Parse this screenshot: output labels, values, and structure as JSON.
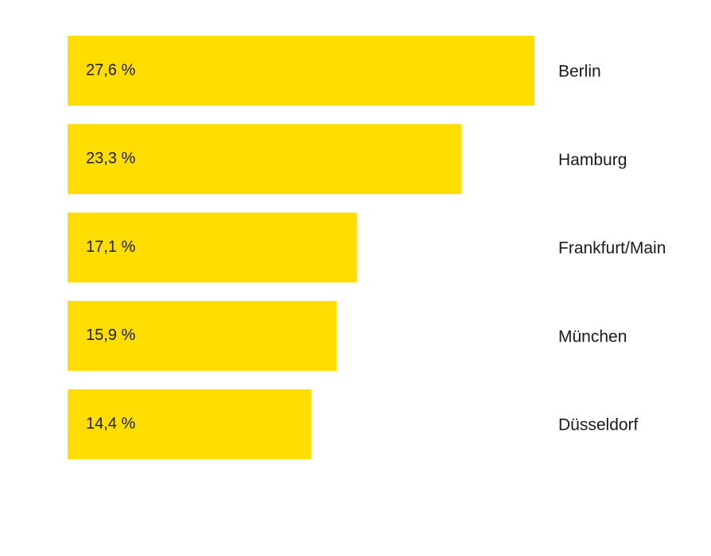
{
  "chart_data": {
    "type": "bar",
    "orientation": "horizontal",
    "categories": [
      "Berlin",
      "Hamburg",
      "Frankfurt/Main",
      "München",
      "Düsseldorf"
    ],
    "values": [
      27.6,
      23.3,
      17.1,
      15.9,
      14.4
    ],
    "value_labels": [
      "27,6 %",
      "23,3 %",
      "17,1 %",
      "15,9 %",
      "14,4 %"
    ],
    "bar_color": "#FFDD00",
    "grid": false,
    "legend": "none"
  }
}
